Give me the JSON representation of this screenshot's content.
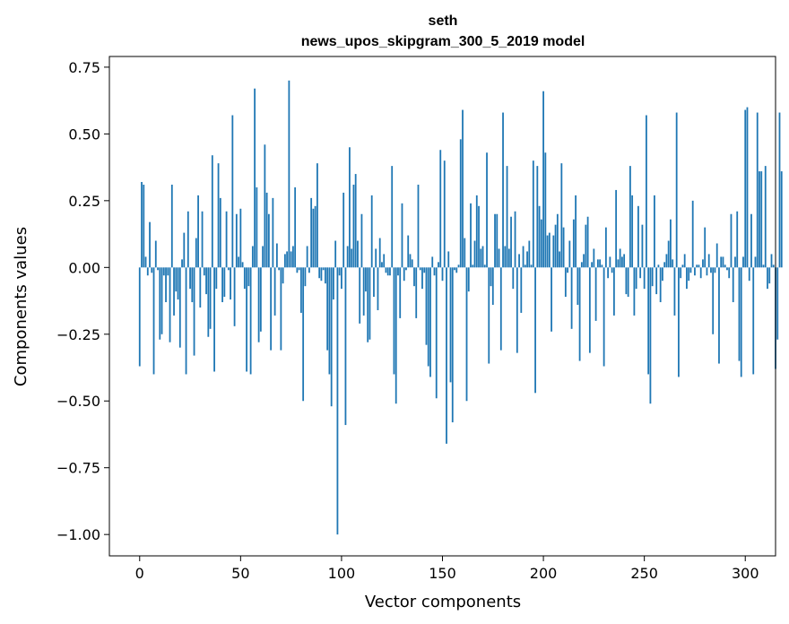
{
  "chart_data": {
    "type": "bar",
    "title": "seth",
    "subtitle": "news_upos_skipgram_300_5_2019 model",
    "xlabel": "Vector components",
    "ylabel": "Components values",
    "xlim": [
      -15,
      315
    ],
    "ylim": [
      -1.08,
      0.79
    ],
    "xticks": [
      0,
      50,
      100,
      150,
      200,
      250,
      300
    ],
    "yticks": [
      -1.0,
      -0.75,
      -0.5,
      -0.25,
      0.0,
      0.25,
      0.5,
      0.75
    ],
    "ytick_labels": [
      "−1.00",
      "−0.75",
      "−0.50",
      "−0.25",
      "0.00",
      "0.25",
      "0.50",
      "0.75"
    ],
    "grid": false,
    "bar_color": "#1f77b4",
    "values": [
      -0.37,
      0.32,
      0.31,
      0.04,
      -0.03,
      0.17,
      -0.02,
      -0.4,
      0.1,
      -0.01,
      -0.27,
      -0.25,
      -0.03,
      -0.13,
      -0.03,
      -0.28,
      0.31,
      -0.18,
      -0.09,
      -0.12,
      -0.3,
      0.03,
      0.13,
      -0.4,
      0.21,
      -0.08,
      -0.13,
      -0.33,
      0.11,
      0.27,
      -0.15,
      0.21,
      -0.03,
      -0.1,
      -0.26,
      -0.23,
      0.42,
      -0.39,
      -0.08,
      0.39,
      0.26,
      -0.13,
      -0.11,
      0.21,
      -0.01,
      -0.12,
      0.57,
      -0.22,
      0.2,
      0.04,
      0.22,
      0.02,
      -0.08,
      -0.39,
      -0.07,
      -0.4,
      0.08,
      0.67,
      0.3,
      -0.28,
      -0.24,
      0.08,
      0.46,
      0.28,
      0.2,
      -0.31,
      0.26,
      -0.18,
      0.09,
      -0.01,
      -0.31,
      -0.06,
      0.05,
      0.06,
      0.7,
      0.06,
      0.08,
      0.3,
      -0.02,
      -0.01,
      -0.17,
      -0.5,
      -0.07,
      0.08,
      -0.02,
      0.26,
      0.22,
      0.23,
      0.39,
      -0.04,
      -0.05,
      -0.01,
      -0.06,
      -0.31,
      -0.4,
      -0.52,
      -0.12,
      0.1,
      -1.0,
      -0.03,
      -0.08,
      0.28,
      -0.59,
      0.08,
      0.45,
      0.07,
      0.31,
      0.35,
      0.1,
      -0.21,
      0.2,
      -0.18,
      -0.09,
      -0.28,
      -0.27,
      0.27,
      -0.11,
      0.07,
      -0.16,
      0.11,
      0.02,
      0.05,
      -0.02,
      -0.03,
      -0.03,
      0.38,
      -0.4,
      -0.51,
      -0.03,
      -0.19,
      0.24,
      -0.05,
      -0.01,
      0.12,
      0.05,
      0.03,
      -0.07,
      -0.19,
      0.31,
      -0.01,
      -0.08,
      -0.02,
      -0.29,
      -0.37,
      -0.41,
      0.04,
      -0.03,
      -0.49,
      0.02,
      0.44,
      -0.05,
      0.4,
      -0.66,
      0.06,
      -0.43,
      -0.58,
      -0.01,
      -0.02,
      0.01,
      0.48,
      0.59,
      0.11,
      -0.5,
      -0.09,
      0.24,
      0.01,
      0.1,
      0.27,
      0.23,
      0.07,
      0.08,
      0.01,
      0.43,
      -0.36,
      -0.07,
      -0.14,
      0.2,
      0.2,
      0.07,
      -0.31,
      0.58,
      0.08,
      0.38,
      0.07,
      0.19,
      -0.08,
      0.21,
      -0.32,
      0.05,
      -0.17,
      0.08,
      0.01,
      0.06,
      0.1,
      0.01,
      0.4,
      -0.47,
      0.38,
      0.23,
      0.18,
      0.66,
      0.43,
      0.12,
      0.13,
      -0.24,
      0.12,
      0.16,
      0.2,
      0.06,
      0.39,
      0.15,
      -0.11,
      -0.02,
      0.1,
      -0.23,
      0.18,
      0.27,
      -0.14,
      -0.35,
      0.02,
      0.05,
      0.16,
      0.19,
      -0.32,
      0.02,
      0.07,
      -0.2,
      0.03,
      0.03,
      0.01,
      -0.37,
      0.15,
      -0.04,
      0.04,
      -0.02,
      -0.18,
      0.29,
      0.03,
      0.07,
      0.04,
      0.05,
      -0.1,
      -0.11,
      0.38,
      0.27,
      -0.18,
      -0.08,
      0.23,
      -0.04,
      0.16,
      -0.08,
      0.57,
      -0.4,
      -0.51,
      -0.07,
      0.27,
      -0.1,
      0.01,
      -0.13,
      -0.05,
      0.02,
      0.05,
      0.1,
      0.18,
      0.03,
      -0.18,
      0.58,
      -0.41,
      -0.04,
      0.01,
      0.05,
      -0.08,
      -0.05,
      -0.02,
      0.25,
      -0.03,
      0.01,
      0.01,
      -0.04,
      0.03,
      0.15,
      -0.03,
      0.05,
      -0.02,
      -0.25,
      -0.02,
      0.09,
      -0.36,
      0.04,
      0.04,
      0.01,
      -0.01,
      -0.04,
      0.2,
      -0.13,
      0.04,
      0.21,
      -0.35,
      -0.41,
      0.04,
      0.59,
      0.6,
      -0.05,
      0.2,
      -0.4,
      0.04,
      0.58,
      0.36,
      0.36,
      0.01,
      0.38,
      -0.08,
      -0.06,
      0.05,
      0.01,
      -0.38,
      -0.27,
      0.58,
      0.36
    ]
  }
}
